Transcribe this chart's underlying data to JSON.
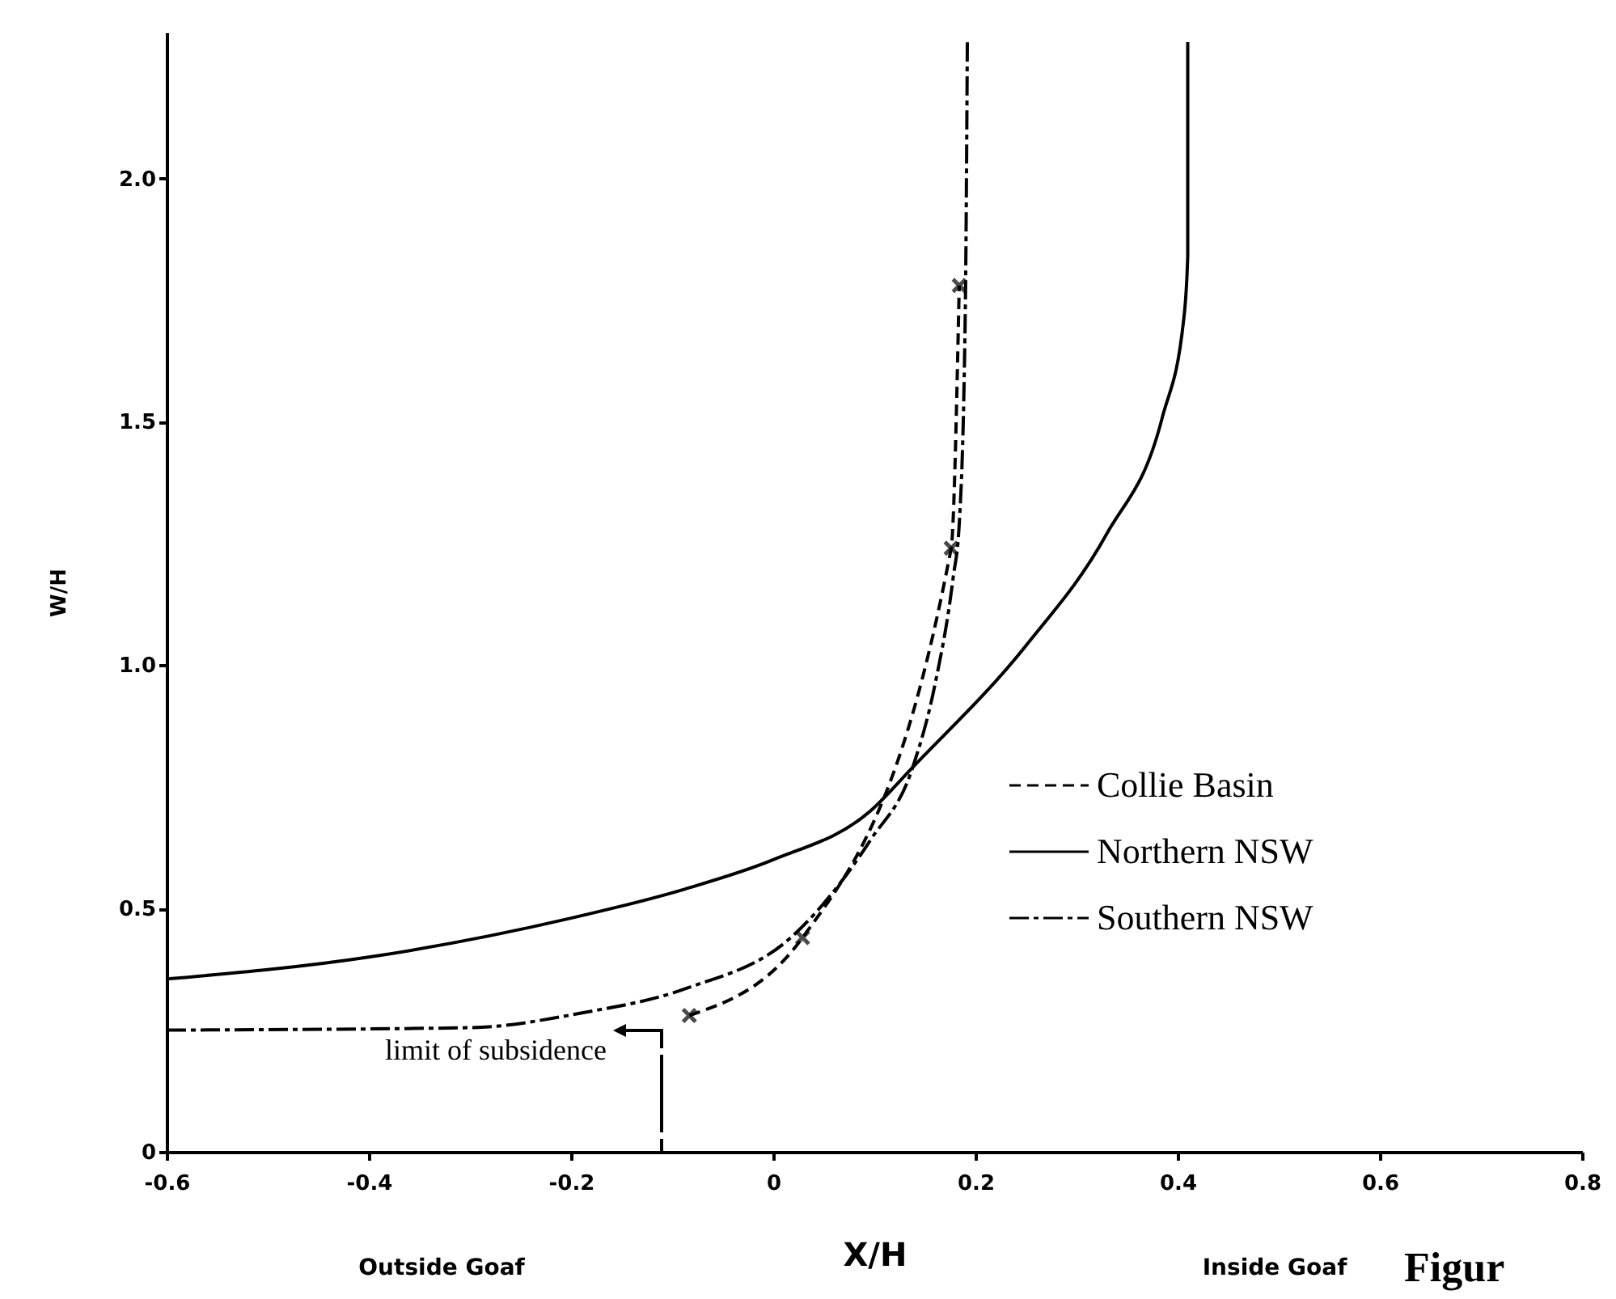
{
  "chart_data": {
    "type": "line",
    "xlabel": "X/H",
    "ylabel": "W/H",
    "xlim": [
      -0.6,
      0.8
    ],
    "xticks": [
      -0.6,
      -0.4,
      -0.2,
      0,
      0.2,
      0.4,
      0.6,
      0.8
    ],
    "ylim": [
      0,
      2.3
    ],
    "yticks": [
      0,
      0.5,
      {
        "value": 1,
        "label": "1.0"
      },
      1.5,
      {
        "value": 2,
        "label": "2.0"
      }
    ],
    "grid": false,
    "legend": "right",
    "series": [
      {
        "name": "Collie Basin",
        "color": "#000000",
        "line_style": "dashed",
        "marker": "cross",
        "x": [
          -0.083,
          0.029,
          0.176,
          0.184
        ],
        "values": [
          0.28,
          0.44,
          1.24,
          1.78
        ]
      },
      {
        "name": "Northern NSW",
        "color": "#000000",
        "line_style": "solid",
        "marker": "none",
        "x": [
          -0.6,
          -0.4,
          -0.2,
          -0.087,
          0,
          0.096,
          0.138,
          0.25,
          0.33,
          0.385,
          0.406,
          0.41,
          0.41
        ],
        "values": [
          0.355,
          0.4,
          0.48,
          0.54,
          0.6,
          0.7,
          0.79,
          1.04,
          1.27,
          1.51,
          1.71,
          1.84,
          2.28
        ]
      },
      {
        "name": "Southern NSW",
        "color": "#000000",
        "line_style": "dashdot",
        "marker": "none",
        "x": [
          -0.6,
          -0.3,
          -0.19,
          -0.087,
          0.02,
          0.096,
          0.138,
          0.16,
          0.178,
          0.184,
          0.19,
          0.192
        ],
        "values": [
          0.25,
          0.255,
          0.285,
          0.335,
          0.445,
          0.64,
          0.79,
          0.96,
          1.18,
          1.29,
          1.73,
          2.28
        ]
      }
    ],
    "annotations": [
      "limit of subsidence",
      "Outside Goaf",
      "Inside Goaf",
      "Figur"
    ]
  }
}
